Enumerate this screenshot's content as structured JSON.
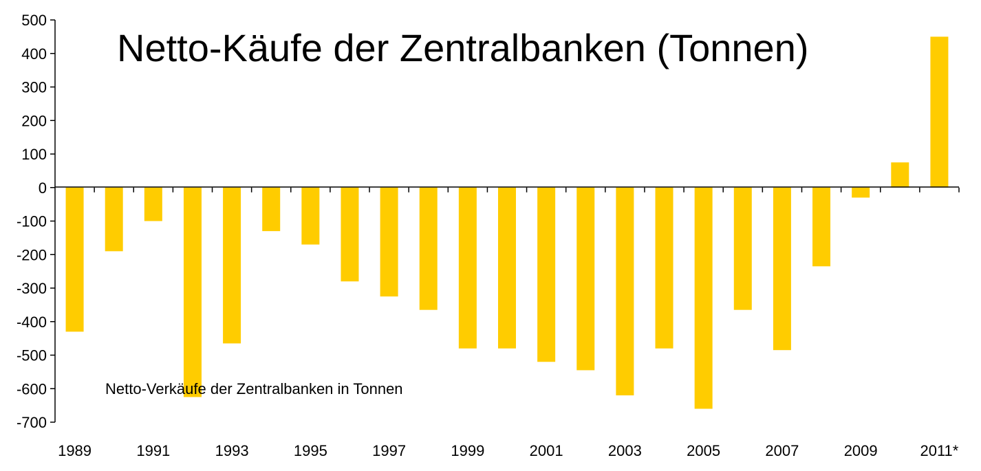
{
  "chart_data": {
    "type": "bar",
    "title": "Netto-Käufe der Zentralbanken (Tonnen)",
    "annotation": "Netto-Verkäufe der Zentralbanken in Tonnen",
    "xlabel": "",
    "ylabel": "",
    "ylim": [
      -700,
      500
    ],
    "yticks": [
      500,
      400,
      300,
      200,
      100,
      0,
      -100,
      -200,
      -300,
      -400,
      -500,
      -600,
      -700
    ],
    "categories": [
      "1989",
      "1990",
      "1991",
      "1992",
      "1993",
      "1994",
      "1995",
      "1996",
      "1997",
      "1998",
      "1999",
      "2000",
      "2001",
      "2002",
      "2003",
      "2004",
      "2005",
      "2006",
      "2007",
      "2008",
      "2009",
      "2010",
      "2011*"
    ],
    "x_tick_labels": [
      "1989",
      "1991",
      "1993",
      "1995",
      "1997",
      "1999",
      "2001",
      "2003",
      "2005",
      "2007",
      "2009",
      "2011*"
    ],
    "values": [
      -430,
      -190,
      -100,
      -625,
      -465,
      -130,
      -170,
      -280,
      -325,
      -365,
      -480,
      -480,
      -520,
      -545,
      -620,
      -480,
      -660,
      -365,
      -485,
      -235,
      -30,
      75,
      450
    ],
    "bar_color": "#ffcc00",
    "grid": false,
    "legend": "none"
  }
}
